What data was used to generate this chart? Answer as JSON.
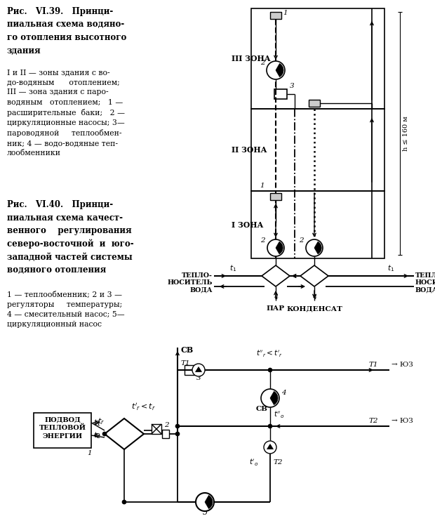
{
  "bg_color": "#ffffff",
  "title1_bold": "Рис.   VI.39.   Принци-\nпиальная схема водяно-\nго отопления высотного\nздания",
  "desc1": "I и II — зоны здания с во-\nдо-водяным      отоплением;\nIII — зона здания с паро-\nводяным   отоплением;   1 —\nрасширительные  баки;   2 —\nциркуляционные насосы; 3—\nпароводяной     теплообмен-\nник; 4 — водо-водяные теп-\nлообменники",
  "title2_bold": "Рис.   VI.40.   Принци-\nпиальная схема качест-\nвенного    регулирования\nсеверо-восточной  и  юго-\nзападной частей системы\nводяного отопления",
  "desc2": "1 — теплообменник; 2 и 3 —\nрегуляторы     температуры;\n4 — смесительный насос; 5—\nциркуляционный насос"
}
